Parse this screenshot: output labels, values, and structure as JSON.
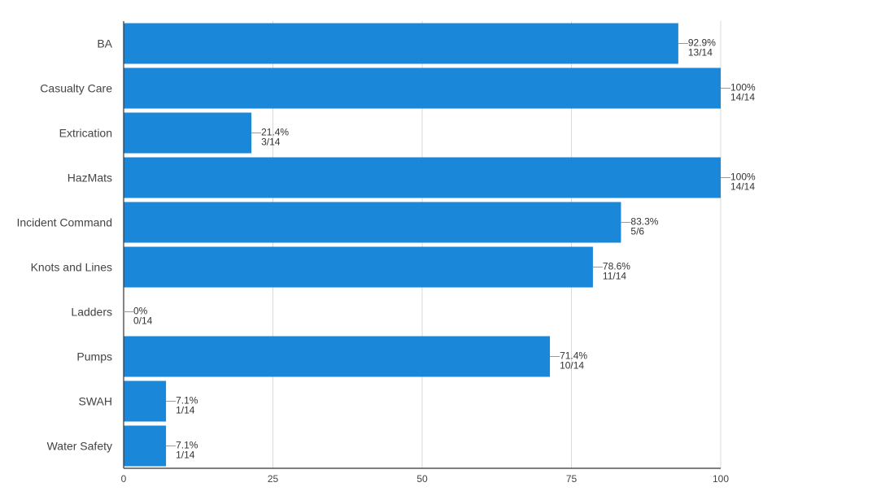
{
  "chart_data": {
    "type": "bar",
    "orientation": "horizontal",
    "categories": [
      "BA",
      "Casualty Care",
      "Extrication",
      "HazMats",
      "Incident Command",
      "Knots and Lines",
      "Ladders",
      "Pumps",
      "SWAH",
      "Water Safety"
    ],
    "values": [
      92.9,
      100,
      21.4,
      100,
      83.3,
      78.6,
      0,
      71.4,
      7.1,
      7.1
    ],
    "percent_labels": [
      "92.9%",
      "100%",
      "21.4%",
      "100%",
      "83.3%",
      "78.6%",
      "0%",
      "71.4%",
      "7.1%",
      "7.1%"
    ],
    "count_labels": [
      "13/14",
      "14/14",
      "3/14",
      "14/14",
      "5/6",
      "11/14",
      "0/14",
      "10/14",
      "1/14",
      "1/14"
    ],
    "x_ticks": [
      "0",
      "25",
      "50",
      "75",
      "100"
    ],
    "xlim": [
      0,
      100
    ],
    "grid": true,
    "bar_color": "#1a87d9",
    "grid_color": "#d9d9d9",
    "axis_color": "#333333",
    "title": "",
    "xlabel": "",
    "ylabel": ""
  }
}
